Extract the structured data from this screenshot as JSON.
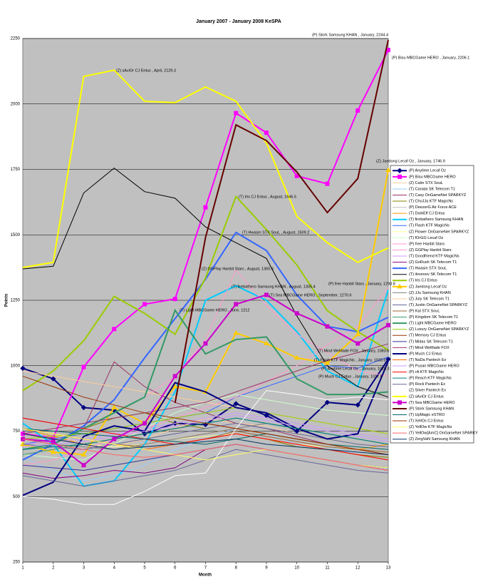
{
  "chart_data": {
    "type": "line",
    "title": "January 2007 - January 2008 KeSPA",
    "x_label": "Month",
    "y_label": "Points",
    "x": [
      1,
      2,
      3,
      4,
      5,
      6,
      7,
      8,
      9,
      10,
      11,
      12,
      13
    ],
    "xlim": [
      1,
      13
    ],
    "xticks": [
      1,
      2,
      3,
      4,
      5,
      6,
      7,
      8,
      9,
      10,
      11,
      12,
      13
    ],
    "ylim": [
      250,
      2250
    ],
    "yticks": [
      250,
      500,
      750,
      1000,
      1250,
      1500,
      1750,
      2000,
      2250
    ],
    "grid": true,
    "series": [
      {
        "name": "(P) Anytime  Lecaf Oz",
        "color": "#000080",
        "marker": "diamond",
        "width": 2,
        "values": [
          990,
          950,
          840,
          830,
          740,
          780,
          775,
          855,
          810,
          750,
          860,
          850,
          1025.3
        ]
      },
      {
        "name": "(P) Bisu  MBCGame HERO",
        "color": "#ff00ff",
        "marker": "square",
        "width": 2,
        "values": [
          740,
          725,
          995,
          1140,
          1235,
          1255,
          1605,
          1965,
          1890,
          1725,
          1695,
          1975,
          2206.1
        ]
      },
      {
        "name": "(Z) Calm  STX SouL",
        "color": "#ffcc99",
        "marker": null,
        "width": 1,
        "values": [
          760,
          740,
          700,
          690,
          720,
          760,
          800,
          780,
          770,
          740,
          720,
          700,
          690
        ]
      },
      {
        "name": "(T) Canata  SK Telecom T1",
        "color": "#99ccff",
        "marker": null,
        "width": 1,
        "values": [
          650,
          600,
          560,
          580,
          620,
          680,
          720,
          760,
          740,
          700,
          690,
          660,
          640
        ]
      },
      {
        "name": "(T) Casy  OnGameNet SPARKYZ",
        "color": "#993366",
        "marker": null,
        "width": 1,
        "values": [
          800,
          780,
          760,
          1015,
          920,
          860,
          820,
          780,
          760,
          730,
          700,
          680,
          660
        ]
      },
      {
        "name": "(T) ChoJJa  KTF MagicNs",
        "color": "#808000",
        "marker": null,
        "width": 1,
        "values": [
          720,
          700,
          760,
          800,
          820,
          780,
          760,
          740,
          720,
          690,
          680,
          660,
          650
        ]
      },
      {
        "name": "(P) DeezerG  Air Force ACE",
        "color": "#c0c0c0",
        "marker": null,
        "width": 1,
        "values": [
          700,
          690,
          680,
          700,
          720,
          740,
          760,
          740,
          720,
          700,
          690,
          680,
          670
        ]
      },
      {
        "name": "(T) DarkElf  CJ Entus",
        "color": "#ff9900",
        "marker": null,
        "width": 1,
        "values": [
          760,
          730,
          700,
          680,
          700,
          720,
          740,
          760,
          740,
          720,
          700,
          680,
          700
        ]
      },
      {
        "name": "(T) firebathero  Samsung KHAN",
        "color": "#00ccff",
        "marker": null,
        "width": 2,
        "values": [
          780,
          700,
          540,
          560,
          700,
          900,
          1250,
          1305.4,
          1250,
          1130,
          980,
          920,
          1290
        ]
      },
      {
        "name": "(T) Flash  KTF MagicNs",
        "color": "#3366ff",
        "marker": null,
        "width": 1,
        "values": [
          700,
          720,
          740,
          760,
          780,
          800,
          820,
          880,
          920,
          960,
          1000,
          990,
          1033.5
        ]
      },
      {
        "name": "(Z) Flower  OnGameNet SPARKYZ",
        "color": "#ffff99",
        "marker": null,
        "width": 1,
        "values": [
          740,
          720,
          700,
          690,
          700,
          720,
          730,
          740,
          720,
          700,
          690,
          680,
          670
        ]
      },
      {
        "name": "(T) fOrGG  Lecaf Oz",
        "color": "#ccffcc",
        "marker": null,
        "width": 1,
        "values": [
          660,
          650,
          640,
          700,
          760,
          820,
          860,
          890,
          870,
          850,
          830,
          820,
          810
        ]
      },
      {
        "name": "(P) free  Hanbit Stars",
        "color": "#ff99cc",
        "marker": null,
        "width": 1,
        "values": [
          620,
          640,
          680,
          720,
          760,
          800,
          840,
          880,
          940,
          1000,
          1080,
          1150,
          1298.8
        ]
      },
      {
        "name": "(Z) GGPlay  Hanbit Stars",
        "color": "#ff99cc",
        "marker": null,
        "width": 1,
        "values": [
          680,
          700,
          760,
          820,
          880,
          960,
          1100,
          1365.6,
          1230,
          1120,
          1050,
          980,
          960
        ]
      },
      {
        "name": "(T) Goodfriend  KTF MagicNs",
        "color": "#cc99ff",
        "marker": null,
        "width": 1,
        "values": [
          700,
          710,
          720,
          740,
          760,
          780,
          800,
          820,
          800,
          780,
          760,
          740,
          720
        ]
      },
      {
        "name": "(Z) GoRush  SK Telecom T1",
        "color": "#800080",
        "marker": null,
        "width": 1,
        "values": [
          590,
          570,
          580,
          600,
          590,
          610,
          680,
          700,
          680,
          660,
          640,
          620,
          600
        ]
      },
      {
        "name": "(T) Hwasin  STX SouL",
        "color": "#3366ff",
        "marker": null,
        "width": 2,
        "values": [
          640,
          700,
          770,
          870,
          1030,
          1180,
          1330,
          1509.2,
          1440,
          1270,
          1150,
          1130,
          1185
        ]
      },
      {
        "name": "(T) iloveoov  SK Telecom T1",
        "color": "#000000",
        "marker": null,
        "width": 1,
        "values": [
          1370,
          1380,
          1660,
          1755,
          1665,
          1640,
          1530,
          1470,
          1410,
          1190,
          1000,
          920,
          880
        ]
      },
      {
        "name": "(T) Iris  CJ Entus",
        "color": "#99cc00",
        "marker": null,
        "width": 2,
        "values": [
          905,
          980,
          1095,
          1265,
          1200,
          1120,
          1335,
          1646.5,
          1520,
          1385,
          1210,
          1130,
          1060
        ]
      },
      {
        "name": "(Z) Jaedong  Lecaf Oz",
        "color": "#ffcc00",
        "marker": "triangle",
        "width": 2,
        "values": [
          700,
          670,
          660,
          840,
          780,
          920,
          900,
          1125,
          1085,
          1030,
          1010,
          1120,
          1746.9
        ]
      },
      {
        "name": "(Z) JJu  Samsung KHAN",
        "color": "#808080",
        "marker": null,
        "width": 1,
        "values": [
          720,
          700,
          690,
          680,
          700,
          720,
          740,
          760,
          780,
          760,
          740,
          720,
          700
        ]
      },
      {
        "name": "(Z) July  SK Telecom T1",
        "color": "#ffcc99",
        "marker": null,
        "width": 1,
        "values": [
          980,
          960,
          940,
          920,
          900,
          880,
          860,
          840,
          820,
          800,
          780,
          760,
          740
        ]
      },
      {
        "name": "(T) Justin  OnGameNet SPARKYZ",
        "color": "#666699",
        "marker": null,
        "width": 1,
        "values": [
          700,
          690,
          680,
          700,
          720,
          740,
          760,
          780,
          760,
          740,
          720,
          700,
          690
        ]
      },
      {
        "name": "(P) Kal  STX SouL",
        "color": "#996633",
        "marker": null,
        "width": 1,
        "values": [
          760,
          740,
          720,
          700,
          690,
          700,
          720,
          750,
          730,
          710,
          690,
          680,
          670
        ]
      },
      {
        "name": "(P) Kingdom  SK Telecom T1",
        "color": "#339966",
        "marker": null,
        "width": 1,
        "values": [
          660,
          680,
          700,
          720,
          740,
          760,
          780,
          800,
          780,
          760,
          740,
          720,
          700
        ]
      },
      {
        "name": "(T) Light  MBCGame HERO",
        "color": "#339966",
        "marker": null,
        "width": 2,
        "values": [
          680,
          700,
          760,
          820,
          880,
          1212,
          1045,
          1100,
          1110,
          950,
          890,
          890,
          900
        ]
      },
      {
        "name": "(Z) Luxury  OnGameNet SPARKYZ",
        "color": "#99cc00",
        "marker": null,
        "width": 1,
        "values": [
          720,
          730,
          740,
          760,
          780,
          800,
          820,
          840,
          820,
          800,
          780,
          760,
          740
        ]
      },
      {
        "name": "(T) Memory  CJ Entus",
        "color": "#993300",
        "marker": null,
        "width": 1,
        "values": [
          740,
          720,
          700,
          720,
          740,
          760,
          780,
          760,
          740,
          720,
          700,
          680,
          660
        ]
      },
      {
        "name": "(T) Midas  SK Telecom T1",
        "color": "#333399",
        "marker": null,
        "width": 1,
        "values": [
          620,
          610,
          600,
          620,
          640,
          660,
          680,
          700,
          680,
          660,
          640,
          620,
          610
        ]
      },
      {
        "name": "(T) Mind  WeMade FOX",
        "color": "#993366",
        "marker": null,
        "width": 1,
        "values": [
          740,
          760,
          780,
          800,
          820,
          840,
          860,
          900,
          940,
          980,
          1020,
          1050,
          1083.6
        ]
      },
      {
        "name": "(P) Much  CJ Entus",
        "color": "#000080",
        "marker": null,
        "width": 2,
        "values": [
          505,
          555,
          730,
          770,
          750,
          935,
          900,
          840,
          820,
          760,
          720,
          740,
          1017.5
        ]
      },
      {
        "name": "(T) NaDa  Pantech Ex",
        "color": "#ff6600",
        "marker": null,
        "width": 1,
        "values": [
          760,
          740,
          720,
          700,
          680,
          700,
          720,
          740,
          720,
          700,
          680,
          660,
          640
        ]
      },
      {
        "name": "(P) Pusan  MBCGame HERO",
        "color": "#cc99ff",
        "marker": null,
        "width": 1,
        "values": [
          690,
          700,
          710,
          730,
          750,
          770,
          790,
          810,
          790,
          770,
          750,
          730,
          710
        ]
      },
      {
        "name": "(P) rA  KTF MagicNs",
        "color": "#ff0000",
        "marker": null,
        "width": 1,
        "values": [
          800,
          780,
          760,
          740,
          720,
          700,
          720,
          740,
          720,
          700,
          680,
          660,
          640
        ]
      },
      {
        "name": "(P) Reach  KTF MagicNs",
        "color": "#008080",
        "marker": null,
        "width": 1,
        "values": [
          680,
          690,
          700,
          720,
          740,
          760,
          780,
          800,
          780,
          760,
          740,
          720,
          700
        ]
      },
      {
        "name": "(P) Rock  Pantech Ex",
        "color": "#666699",
        "marker": null,
        "width": 1,
        "values": [
          580,
          560,
          540,
          560,
          580,
          600,
          640,
          680,
          660,
          640,
          620,
          600,
          590
        ]
      },
      {
        "name": "(Z) Silver  Pantech Ex",
        "color": "#ffffff",
        "marker": null,
        "width": 1,
        "values": [
          500,
          490,
          470,
          470,
          520,
          580,
          590,
          760,
          905,
          890,
          870,
          880,
          870
        ]
      },
      {
        "name": "(Z) sAviOr  CJ Entus",
        "color": "#ffff00",
        "marker": null,
        "width": 2,
        "values": [
          1375,
          1395,
          2105,
          2129.3,
          2010,
          2005,
          2065,
          2010,
          1850,
          1570,
          1470,
          1395,
          1450
        ]
      },
      {
        "name": "(T) Sea  MBCGame HERO",
        "color": "#cc00cc",
        "marker": "square",
        "width": 2,
        "values": [
          720,
          710,
          620,
          720,
          780,
          960,
          1085,
          1235,
          1270.6,
          1200,
          1150,
          1085,
          1155
        ]
      },
      {
        "name": "(P) Stork  Samsung KHAN",
        "color": "#660000",
        "marker": null,
        "width": 2,
        "values": [
          null,
          null,
          null,
          null,
          null,
          858,
          1490,
          1920,
          1860,
          1740,
          1585,
          1715,
          2244.4
        ]
      },
      {
        "name": "(T) UpMagic  eSTRO",
        "color": "#006666",
        "marker": null,
        "width": 1,
        "values": [
          760,
          750,
          740,
          730,
          720,
          710,
          700,
          720,
          740,
          720,
          700,
          690,
          680
        ]
      },
      {
        "name": "(T) XellOs  CJ Entus",
        "color": "#993300",
        "marker": null,
        "width": 1,
        "values": [
          960,
          920,
          880,
          850,
          820,
          800,
          780,
          760,
          740,
          720,
          700,
          680,
          660
        ]
      },
      {
        "name": "(Z) YellOw  KTF MagicNs",
        "color": "#ffff66",
        "marker": null,
        "width": 1,
        "values": [
          760,
          740,
          720,
          700,
          680,
          660,
          640,
          660,
          680,
          660,
          640,
          620,
          610
        ]
      },
      {
        "name": "(T) YellOw[ArnC]  OnGameNet SPARKYZ",
        "color": "#ff6666",
        "marker": null,
        "width": 1,
        "values": [
          720,
          700,
          680,
          660,
          650,
          660,
          680,
          700,
          680,
          660,
          640,
          620,
          600
        ]
      },
      {
        "name": "(Z) ZergVaN  Samsung KHAN",
        "color": "#003366",
        "marker": null,
        "width": 1,
        "values": [
          740,
          720,
          700,
          680,
          690,
          700,
          710,
          720,
          700,
          690,
          680,
          670,
          660
        ]
      }
    ],
    "annotations": [
      "(P) Stork  Samsung KHAN , January, 2244.4",
      "(P) Bisu  MBCGame HERO , January, 2206.1",
      "(Z) sAviOr  CJ Entus , April, 2129.3",
      "(Z) Jaedong  Lecaf Oz , January, 1746.9",
      "(T) Iris  CJ Entus , August, 1646.5",
      "(T) Hwasin  STX SouL , August, 1509.2",
      "(Z) GGPlay  Hanbit Stars , August, 1365.6",
      "(T) firebathero  Samsung KHAN , August, 1305.4",
      "(T) Sea  MBCGame HERO , September, 1270.6",
      "(P) free  Hanbit Stars , January, 1298.8",
      "(T) Light  MBCGame HERO , June, 1212",
      "(T) Mind  WeMade FOX , January, 1083.6",
      "(T) Flash  KTF MagicNs , January, 1033.5",
      "(P) Anytime  Lecaf Oz , January, 1025.3",
      "(P) Much  CJ Entus , January, 1017.5"
    ]
  }
}
